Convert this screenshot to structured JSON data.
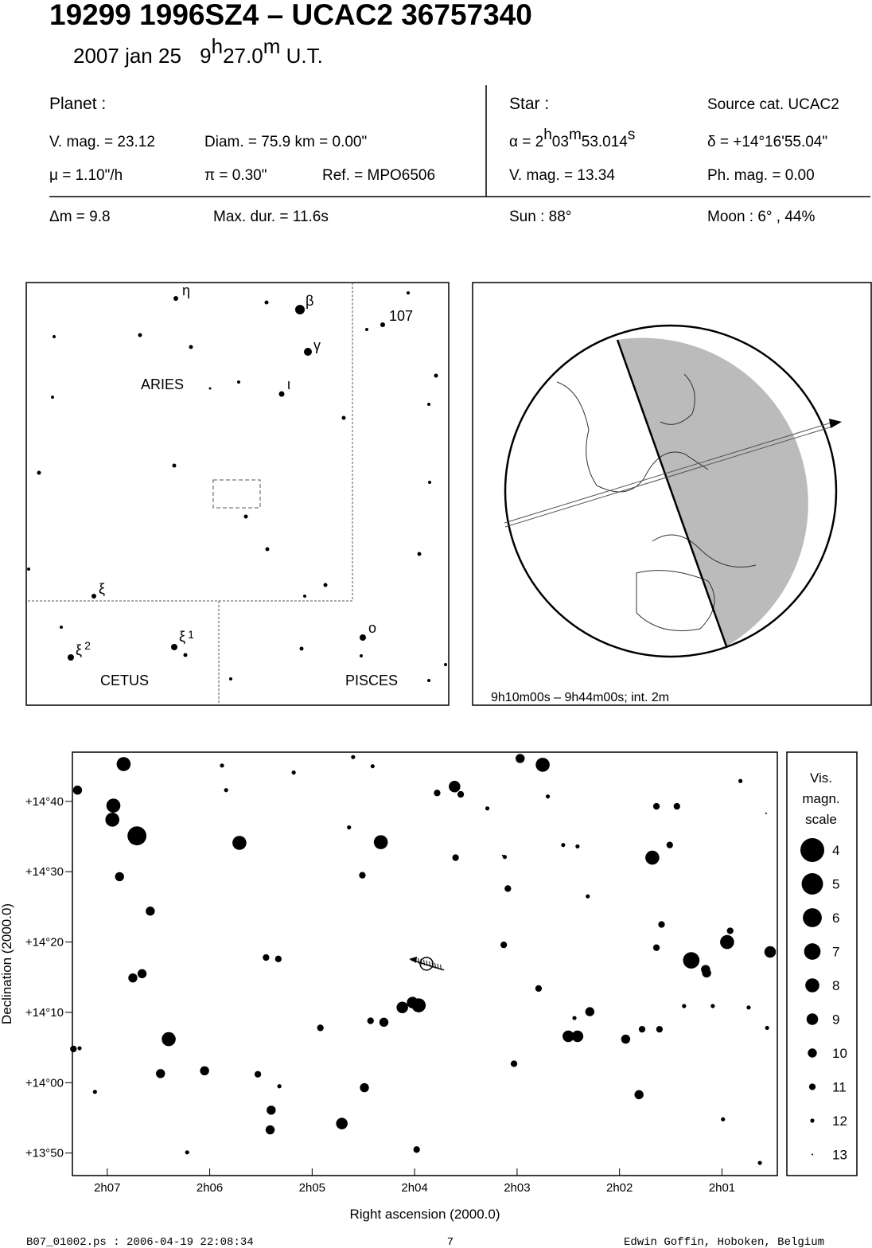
{
  "header": {
    "title": "19299 1996SZ4  –  UCAC2 36757340",
    "date": "2007 jan 25",
    "time_h": "9",
    "time_h_unit": "h",
    "time_m": "27.0",
    "time_m_unit": "m",
    "time_zone": "U.T."
  },
  "info": {
    "planet_label": "Planet :",
    "star_label": "Star :",
    "source_cat": "Source cat.  UCAC2",
    "planet_vmag": "V. mag. = 23.12",
    "diam": "Diam. = 75.9 km = 0.00\"",
    "alpha_prefix": "α = ",
    "alpha_h": "2",
    "alpha_h_unit": "h",
    "alpha_m": "03",
    "alpha_m_unit": "m",
    "alpha_s": "53.014",
    "alpha_s_unit": "s",
    "delta": "δ = +14°16'55.04\"",
    "mu": "μ =  1.10\"/h",
    "pi": "π =  0.30\"",
    "ref": "Ref. = MPO6506",
    "star_vmag": "V. mag. = 13.34",
    "ph_mag": "Ph. mag. =  0.00",
    "dm": "Δm = 9.8",
    "max_dur": "Max. dur. = 11.6s",
    "sun": "Sun :  88°",
    "moon": "Moon :   6° , 44%"
  },
  "finder": {
    "labels": [
      "η",
      "β",
      "107",
      "γ",
      "ι",
      "ARIES",
      "ξ",
      "ξ",
      "2",
      "ξ",
      "1",
      "o",
      "CETUS",
      "PISCES"
    ]
  },
  "globe": {
    "caption": "9h10m00s –  9h44m00s; int.  2m"
  },
  "chart_data": {
    "type": "scatter",
    "x_label": "Right ascension (2000.0)",
    "y_label": "Declination (2000.0)",
    "xlim": [
      127.34,
      120.46
    ],
    "ylim": [
      826.8,
      887.0
    ],
    "xticks": [
      {
        "value": 127,
        "label": "2h07"
      },
      {
        "value": 126,
        "label": "2h06"
      },
      {
        "value": 125,
        "label": "2h05"
      },
      {
        "value": 124,
        "label": "2h04"
      },
      {
        "value": 123,
        "label": "2h03"
      },
      {
        "value": 122,
        "label": "2h02"
      },
      {
        "value": 121,
        "label": "2h01"
      }
    ],
    "yticks": [
      {
        "value": 880,
        "label": "+14°40"
      },
      {
        "value": 870,
        "label": "+14°30"
      },
      {
        "value": 860,
        "label": "+14°20"
      },
      {
        "value": 850,
        "label": "+14°10"
      },
      {
        "value": 840,
        "label": "+14°00"
      },
      {
        "value": 830,
        "label": "+13°50"
      }
    ],
    "ra": [
      126.84,
      127.29,
      126.94,
      126.95,
      126.71,
      125.71,
      124.33,
      123.61,
      122.75,
      122.97,
      121.68,
      121.3,
      120.95,
      120.53,
      126.4,
      123.96,
      124.02,
      124.12,
      122.5,
      122.41,
      124.71,
      121.94,
      122.29,
      126.88,
      126.58,
      126.75,
      126.66,
      126.05,
      126.48,
      125.4,
      124.49,
      124.3,
      124.43,
      125.45,
      125.33,
      123.09,
      123.13,
      122.79,
      123.03,
      121.59,
      121.64,
      121.16,
      121.15,
      121.64,
      121.44,
      121.51,
      120.92,
      121.81,
      121.61,
      121.78,
      125.41,
      123.98,
      123.6,
      123.78,
      123.55,
      124.51,
      124.64,
      125.18,
      124.6,
      124.41,
      123.12,
      122.31,
      125.88,
      125.84,
      126.22,
      127.12,
      127.33,
      127.27,
      124.92,
      125.53,
      125.32,
      122.44,
      120.99,
      120.63,
      120.82,
      120.57,
      120.56,
      120.74,
      121.37,
      121.09,
      122.55,
      122.41,
      123.29,
      122.7,
      123.14
    ],
    "dec": [
      885.3,
      881.6,
      879.4,
      877.4,
      875.1,
      874.1,
      874.2,
      882.1,
      885.2,
      886.1,
      872.0,
      857.4,
      860.0,
      858.6,
      846.2,
      851.0,
      851.4,
      850.7,
      846.6,
      846.6,
      834.2,
      846.2,
      850.1,
      869.3,
      864.4,
      854.9,
      855.5,
      841.7,
      841.3,
      836.1,
      839.3,
      848.6,
      848.8,
      857.8,
      857.6,
      867.6,
      859.6,
      853.4,
      842.7,
      862.5,
      859.2,
      856.1,
      855.6,
      879.3,
      879.3,
      873.8,
      861.6,
      838.3,
      847.6,
      847.6,
      833.3,
      830.5,
      872.0,
      881.2,
      881.0,
      869.5,
      876.3,
      884.1,
      886.3,
      885.0,
      872.1,
      866.5,
      885.1,
      881.6,
      830.1,
      838.7,
      844.8,
      844.9,
      847.8,
      841.2,
      839.5,
      849.2,
      834.8,
      828.6,
      882.9,
      878.3,
      847.8,
      850.7,
      850.9,
      850.9,
      873.8,
      873.6,
      879.0,
      880.7,
      872.3
    ],
    "mag": [
      8,
      10,
      8,
      8,
      6,
      8,
      8,
      9,
      8,
      10,
      8,
      7,
      8,
      9,
      8,
      8,
      9,
      9,
      9,
      9,
      9,
      10,
      10,
      10,
      10,
      10,
      10,
      10,
      10,
      10,
      10,
      10,
      11,
      11,
      11,
      11,
      11,
      11,
      11,
      11,
      11,
      10,
      10,
      11,
      11,
      11,
      11,
      10,
      11,
      11,
      10,
      11,
      11,
      11,
      11,
      11,
      12,
      12,
      12,
      12,
      12,
      12,
      12,
      12,
      12,
      12,
      11,
      12,
      11,
      11,
      12,
      12,
      12,
      12,
      12,
      13,
      12,
      12,
      12,
      12,
      12,
      12,
      12,
      12,
      13
    ],
    "target": {
      "ra": 123.884,
      "dec": 856.92
    },
    "scale_title": [
      "Vis.",
      "magn.",
      "scale"
    ],
    "scale": [
      4,
      5,
      6,
      7,
      8,
      9,
      10,
      11,
      12,
      13
    ]
  },
  "footer": {
    "file": "B07_01002.ps : 2006-04-19 22:08:34",
    "page": "7",
    "author": "Edwin Goffin, Hoboken, Belgium"
  }
}
